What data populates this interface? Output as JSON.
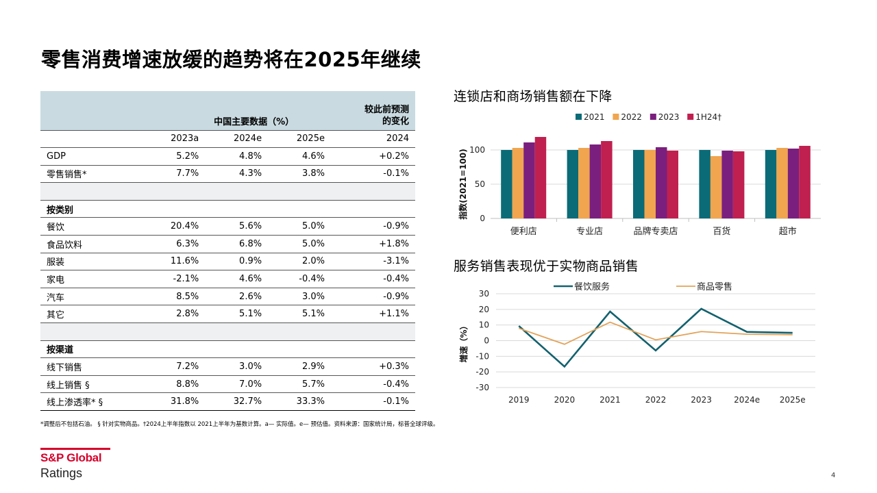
{
  "page": {
    "title": "零售消费增速放缓的趋势将在2025年继续",
    "footnote": "*调整后不包括石油。 § 针对实物商品。†2024上半年指数以 2021上半年为基数计算。a— 实际值。e— 预估值。资料来源：国家统计局，标普全球评级。",
    "logo_main": "S&P Global",
    "logo_sub": "Ratings",
    "page_number": "4"
  },
  "table": {
    "header_main": "中国主要数据（%）",
    "header_change_line1": "较此前预测",
    "header_change_line2": "的变化",
    "years": [
      "2023a",
      "2024e",
      "2025e",
      "2024"
    ],
    "rows_top": [
      {
        "label": "GDP",
        "values": [
          "5.2%",
          "4.8%",
          "4.6%",
          "+0.2%"
        ]
      },
      {
        "label": "零售销售*",
        "values": [
          "7.7%",
          "4.3%",
          "3.8%",
          "-0.1%"
        ]
      }
    ],
    "section_category": "按类别",
    "rows_category": [
      {
        "label": "餐饮",
        "values": [
          "20.4%",
          "5.6%",
          "5.0%",
          "-0.9%"
        ]
      },
      {
        "label": "食品饮料",
        "values": [
          "6.3%",
          "6.8%",
          "5.0%",
          "+1.8%"
        ]
      },
      {
        "label": "服装",
        "values": [
          "11.6%",
          "0.9%",
          "2.0%",
          "-3.1%"
        ]
      },
      {
        "label": "家电",
        "values": [
          "-2.1%",
          "4.6%",
          "-0.4%",
          "-0.4%"
        ]
      },
      {
        "label": "汽车",
        "values": [
          "8.5%",
          "2.6%",
          "3.0%",
          "-0.9%"
        ]
      },
      {
        "label": "其它",
        "values": [
          "2.8%",
          "5.1%",
          "5.1%",
          "+1.1%"
        ]
      }
    ],
    "section_channel": "按渠道",
    "rows_channel": [
      {
        "label": "线下销售",
        "values": [
          "7.2%",
          "3.0%",
          "2.9%",
          "+0.3%"
        ]
      },
      {
        "label": "线上销售 §",
        "values": [
          "8.8%",
          "7.0%",
          "5.7%",
          "-0.4%"
        ]
      },
      {
        "label": "线上渗透率* §",
        "values": [
          "31.8%",
          "32.7%",
          "33.3%",
          "-0.1%"
        ]
      }
    ]
  },
  "chart_data": [
    {
      "type": "bar",
      "title": "连锁店和商场销售额在下降",
      "ylabel": "指数(2021=100)",
      "xlabel": "",
      "ylim": [
        0,
        120
      ],
      "yticks": [
        0,
        50,
        100
      ],
      "categories": [
        "便利店",
        "专业店",
        "品牌专卖店",
        "百货",
        "超市"
      ],
      "legend_position": "top",
      "grid": true,
      "series": [
        {
          "name": "2021",
          "color": "#0b6b77",
          "values": [
            100,
            100,
            100,
            100,
            100
          ]
        },
        {
          "name": "2022",
          "color": "#f0a54e",
          "values": [
            103,
            103,
            100,
            91,
            103
          ]
        },
        {
          "name": "2023",
          "color": "#7a1f7d",
          "values": [
            111,
            108,
            104,
            99,
            102
          ]
        },
        {
          "name": "1H24†",
          "color": "#c0204f",
          "values": [
            119,
            113,
            99,
            98,
            106
          ]
        }
      ]
    },
    {
      "type": "line",
      "title": "服务销售表现优于实物商品销售",
      "ylabel": "增速（%）",
      "xlabel": "",
      "ylim": [
        -30,
        30
      ],
      "yticks": [
        -30,
        -20,
        -10,
        0,
        10,
        20,
        30
      ],
      "x": [
        "2019",
        "2020",
        "2021",
        "2022",
        "2023",
        "2024e",
        "2025e"
      ],
      "legend_position": "top",
      "grid": true,
      "series": [
        {
          "name": "餐饮服务",
          "color": "#13616e",
          "values": [
            9.4,
            -16.6,
            18.6,
            -6.3,
            20.4,
            5.6,
            5.0
          ]
        },
        {
          "name": "商品零售",
          "color": "#e2a35a",
          "values": [
            7.9,
            -2.3,
            11.8,
            0.5,
            5.8,
            4.1,
            3.8
          ]
        }
      ]
    }
  ]
}
